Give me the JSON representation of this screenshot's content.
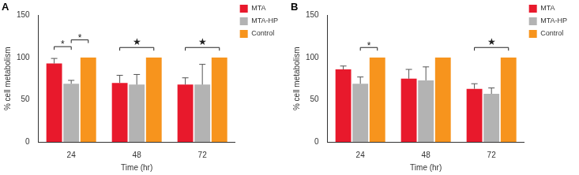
{
  "chart_data": [
    {
      "type": "bar",
      "title": "A",
      "x_label": "Time (hr)",
      "y_label": "% cell metabolism",
      "categories": [
        "24",
        "48",
        "72"
      ],
      "series": [
        {
          "name": "MTA",
          "color": "#e8192c",
          "values": [
            93,
            70,
            68
          ],
          "errors": [
            6,
            9,
            8
          ]
        },
        {
          "name": "MTA-HP",
          "color": "#b3b3b3",
          "values": [
            69,
            68,
            68
          ],
          "errors": [
            4,
            12,
            24
          ]
        },
        {
          "name": "Control",
          "color": "#f7941d",
          "values": [
            100,
            100,
            100
          ],
          "errors": [
            0,
            0,
            0
          ]
        }
      ],
      "ylim": [
        0,
        150
      ],
      "yticks": [
        0,
        50,
        100,
        150
      ],
      "grid": false,
      "legend": "right",
      "annotations": [
        {
          "text": "*",
          "category": "24",
          "from": "MTA",
          "to": "MTA-HP",
          "y": 113
        },
        {
          "text": "*",
          "category": "24",
          "from": "MTA-HP",
          "to": "Control",
          "y": 121
        },
        {
          "text": "★",
          "category": "48",
          "from": "MTA",
          "to": "Control",
          "y": 112
        },
        {
          "text": "★",
          "category": "72",
          "from": "MTA",
          "to": "Control",
          "y": 112
        }
      ]
    },
    {
      "type": "bar",
      "title": "B",
      "x_label": "Time (hr)",
      "y_label": "% cell metabolism",
      "categories": [
        "24",
        "48",
        "72"
      ],
      "series": [
        {
          "name": "MTA",
          "color": "#e8192c",
          "values": [
            86,
            75,
            63
          ],
          "errors": [
            4,
            11,
            6
          ]
        },
        {
          "name": "MTA-HP",
          "color": "#b3b3b3",
          "values": [
            69,
            73,
            57
          ],
          "errors": [
            8,
            16,
            7
          ]
        },
        {
          "name": "Control",
          "color": "#f7941d",
          "values": [
            100,
            100,
            100
          ],
          "errors": [
            0,
            0,
            0
          ]
        }
      ],
      "ylim": [
        0,
        150
      ],
      "yticks": [
        0,
        50,
        100,
        150
      ],
      "grid": false,
      "legend": "right",
      "annotations": [
        {
          "text": "*",
          "category": "24",
          "from": "MTA-HP",
          "to": "Control",
          "y": 112
        },
        {
          "text": "★",
          "category": "72",
          "from": "MTA",
          "to": "Control",
          "y": 112
        }
      ]
    }
  ]
}
